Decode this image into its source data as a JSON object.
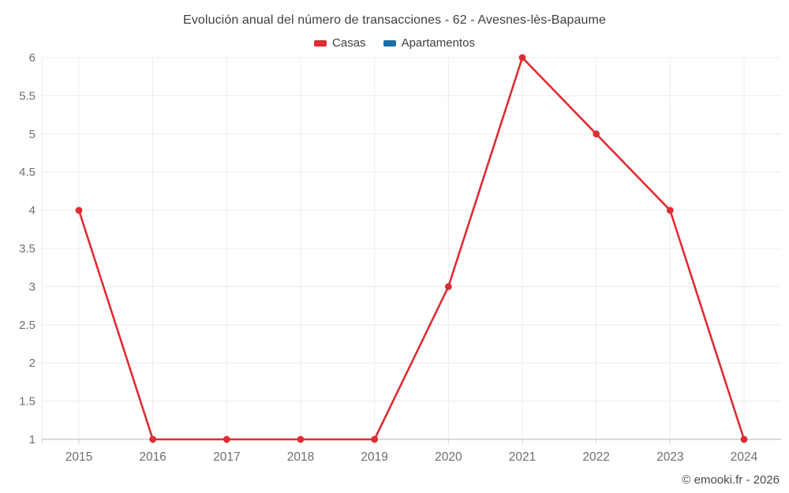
{
  "chart": {
    "title": "Evolución anual del número de transacciones - 62 - Avesnes-lès-Bapaume"
  },
  "chart_data": {
    "type": "line",
    "title": "Evolución anual del número de transacciones - 62 - Avesnes-lès-Bapaume",
    "x": [
      2015,
      2016,
      2017,
      2018,
      2019,
      2020,
      2021,
      2022,
      2023,
      2024
    ],
    "x_labels": [
      "2015",
      "2016",
      "2017",
      "2018",
      "2019",
      "2020",
      "2021",
      "2022",
      "2023",
      "2024"
    ],
    "series": [
      {
        "name": "Casas",
        "color": "#dc2d33",
        "values": [
          4,
          1,
          1,
          1,
          1,
          3,
          6,
          5,
          4,
          1
        ]
      },
      {
        "name": "Apartamentos",
        "color": "#1a6fa5",
        "values": []
      }
    ],
    "xlabel": "",
    "ylabel": "",
    "ylim": [
      1,
      6
    ],
    "ytick_step": 0.5,
    "ytick_labels": [
      "1",
      "1.5",
      "2",
      "2.5",
      "3",
      "3.5",
      "4",
      "4.5",
      "5",
      "5.5",
      "6"
    ],
    "grid": true,
    "legend_position": "top"
  },
  "footer": {
    "copyright": "© emooki.fr - 2026"
  },
  "colors": {
    "casas": "#dc2d33",
    "apartamentos": "#1a6fa5",
    "gridline": "#ececec",
    "axis_line": "#b3b3b3",
    "tick_mark": "#d6d6d6",
    "tick_label": "#6e6e6e",
    "title_text": "#3c4043",
    "background": "#ffffff"
  }
}
